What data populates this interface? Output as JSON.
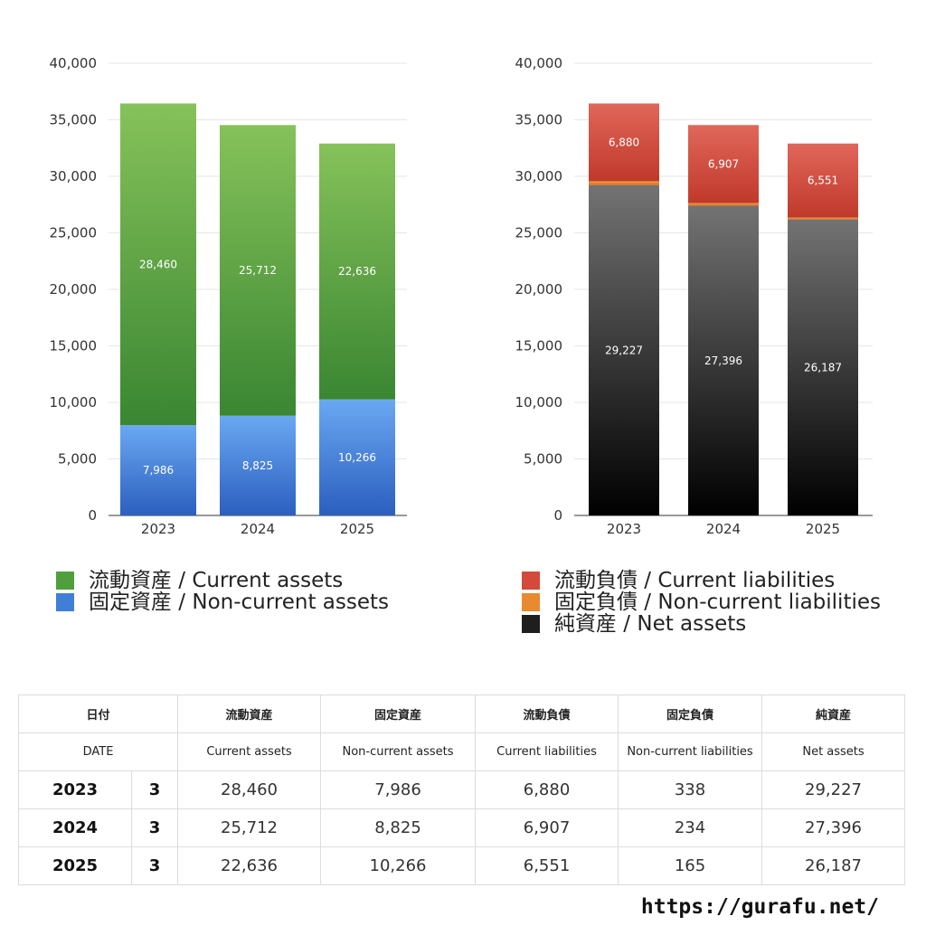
{
  "chart_data": [
    {
      "type": "bar",
      "stacked": true,
      "categories": [
        "2023",
        "2024",
        "2025"
      ],
      "ylim": [
        0,
        40000
      ],
      "yticks": [
        "0",
        "5,000",
        "10,000",
        "15,000",
        "20,000",
        "25,000",
        "30,000",
        "35,000",
        "40,000"
      ],
      "grid": true,
      "series": [
        {
          "name": "固定資産 / Non-current assets",
          "values": [
            7986,
            8825,
            10266
          ],
          "labels": [
            "7,986",
            "8,825",
            "10,266"
          ],
          "color_top": "#6aa8f2",
          "color_bottom": "#2b5fbf"
        },
        {
          "name": "流動資産 / Current assets",
          "values": [
            28460,
            25712,
            22636
          ],
          "labels": [
            "28,460",
            "25,712",
            "22,636"
          ],
          "color_top": "#86c25a",
          "color_bottom": "#3a8632"
        }
      ],
      "legend": [
        {
          "label": "流動資産 / Current assets",
          "color": "#4f9f3c"
        },
        {
          "label": "固定資産 / Non-current assets",
          "color": "#3f7fd8"
        }
      ]
    },
    {
      "type": "bar",
      "stacked": true,
      "categories": [
        "2023",
        "2024",
        "2025"
      ],
      "ylim": [
        0,
        40000
      ],
      "yticks": [
        "0",
        "5,000",
        "10,000",
        "15,000",
        "20,000",
        "25,000",
        "30,000",
        "35,000",
        "40,000"
      ],
      "grid": true,
      "series": [
        {
          "name": "純資産 / Net assets",
          "values": [
            29227,
            27396,
            26187
          ],
          "labels": [
            "29,227",
            "27,396",
            "26,187"
          ],
          "color_top": "#737373",
          "color_bottom": "#000000"
        },
        {
          "name": "固定負債 / Non-current liabilities",
          "values": [
            338,
            234,
            165
          ],
          "labels": [
            "338",
            "234",
            "165"
          ],
          "color_top": "#f0a040",
          "color_bottom": "#d86a20"
        },
        {
          "name": "流動負債 / Current liabilities",
          "values": [
            6880,
            6907,
            6551
          ],
          "labels": [
            "6,880",
            "6,907",
            "6,551"
          ],
          "color_top": "#e0675a",
          "color_bottom": "#c0392b"
        }
      ],
      "legend": [
        {
          "label": "流動負債 / Current liabilities",
          "color": "#d44a3a"
        },
        {
          "label": "固定負債 / Non-current liabilities",
          "color": "#e88a30"
        },
        {
          "label": "純資産 / Net assets",
          "color": "#1e1e1e"
        }
      ]
    }
  ],
  "legends": {
    "left": [
      {
        "label": "流動資産 / Current assets",
        "color": "#4f9f3c"
      },
      {
        "label": "固定資産 / Non-current assets",
        "color": "#3f7fd8"
      }
    ],
    "right": [
      {
        "label": "流動負債 / Current liabilities",
        "color": "#d44a3a"
      },
      {
        "label": "固定負債 / Non-current liabilities",
        "color": "#e88a30"
      },
      {
        "label": "純資産 / Net assets",
        "color": "#1e1e1e"
      }
    ]
  },
  "table": {
    "header_jp": {
      "date": "日付",
      "current_assets": "流動資産",
      "noncurrent_assets": "固定資産",
      "current_liabilities": "流動負債",
      "noncurrent_liabilities": "固定負債",
      "net_assets": "純資産"
    },
    "header_en": {
      "date": "DATE",
      "current_assets": "Current assets",
      "noncurrent_assets": "Non-current assets",
      "current_liabilities": "Current liabilities",
      "noncurrent_liabilities": "Non-current liabilities",
      "net_assets": "Net assets"
    },
    "rows": [
      {
        "year": "2023",
        "month": "3",
        "current_assets": "28,460",
        "noncurrent_assets": "7,986",
        "current_liabilities": "6,880",
        "noncurrent_liabilities": "338",
        "net_assets": "29,227"
      },
      {
        "year": "2024",
        "month": "3",
        "current_assets": "25,712",
        "noncurrent_assets": "8,825",
        "current_liabilities": "6,907",
        "noncurrent_liabilities": "234",
        "net_assets": "27,396"
      },
      {
        "year": "2025",
        "month": "3",
        "current_assets": "22,636",
        "noncurrent_assets": "10,266",
        "current_liabilities": "6,551",
        "noncurrent_liabilities": "165",
        "net_assets": "26,187"
      }
    ]
  },
  "footer": {
    "url": "https://gurafu.net/"
  }
}
